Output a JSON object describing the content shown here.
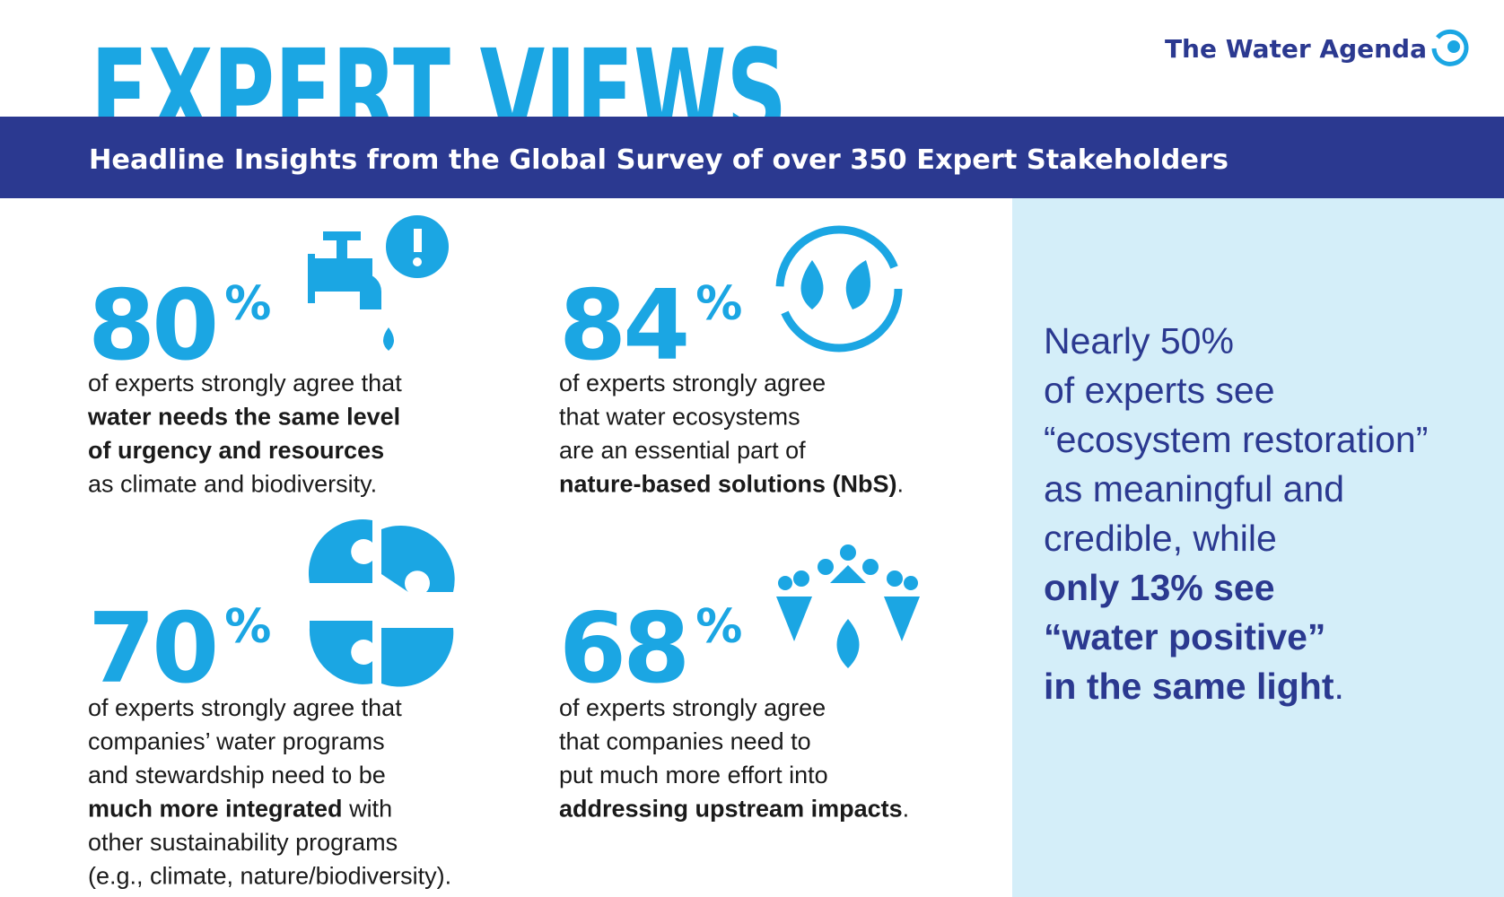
{
  "header": {
    "title": "EXPERT VIEWS",
    "brand": "The Water Agenda",
    "subtitle": "Headline Insights from the Global Survey of over 350 Expert Stakeholders"
  },
  "stats": [
    {
      "number": "80",
      "unit": "%",
      "lines": [
        [
          {
            "text": "of experts strongly agree that",
            "bold": false
          }
        ],
        [
          {
            "text": "water needs the same level",
            "bold": true
          }
        ],
        [
          {
            "text": "of urgency and resources",
            "bold": true
          }
        ],
        [
          {
            "text": "as climate and biodiversity.",
            "bold": false
          }
        ]
      ]
    },
    {
      "number": "84",
      "unit": "%",
      "lines": [
        [
          {
            "text": "of experts strongly agree",
            "bold": false
          }
        ],
        [
          {
            "text": "that water ecosystems",
            "bold": false
          }
        ],
        [
          {
            "text": "are an essential part of",
            "bold": false
          }
        ],
        [
          {
            "text": "nature-based solutions (NbS)",
            "bold": true
          },
          {
            "text": ".",
            "bold": false
          }
        ]
      ]
    },
    {
      "number": "70",
      "unit": "%",
      "lines": [
        [
          {
            "text": "of experts strongly agree that",
            "bold": false
          }
        ],
        [
          {
            "text": "companies’ water programs",
            "bold": false
          }
        ],
        [
          {
            "text": "and stewardship need to be",
            "bold": false
          }
        ],
        [
          {
            "text": "much more integrated",
            "bold": true
          },
          {
            "text": " with",
            "bold": false
          }
        ],
        [
          {
            "text": "other sustainability programs",
            "bold": false
          }
        ],
        [
          {
            "text": "(e.g., climate, nature/biodiversity).",
            "bold": false
          }
        ]
      ]
    },
    {
      "number": "68",
      "unit": "%",
      "lines": [
        [
          {
            "text": "of experts strongly agree",
            "bold": false
          }
        ],
        [
          {
            "text": "that companies need to",
            "bold": false
          }
        ],
        [
          {
            "text": "put much more effort into",
            "bold": false
          }
        ],
        [
          {
            "text": "addressing upstream impacts",
            "bold": true
          },
          {
            "text": ".",
            "bold": false
          }
        ]
      ]
    }
  ],
  "sidebar": {
    "lines": [
      [
        {
          "text": "Nearly 50%",
          "bold": false
        }
      ],
      [
        {
          "text": "of experts see",
          "bold": false
        }
      ],
      [
        {
          "text": "“ecosystem restoration”",
          "bold": false
        }
      ],
      [
        {
          "text": "as meaningful and",
          "bold": false
        }
      ],
      [
        {
          "text": "credible, while",
          "bold": false
        }
      ],
      [
        {
          "text": "only 13% see",
          "bold": true
        }
      ],
      [
        {
          "text": "“water positive”",
          "bold": true
        }
      ],
      [
        {
          "text": "in the same light",
          "bold": true
        },
        {
          "text": ".",
          "bold": false
        }
      ]
    ]
  }
}
